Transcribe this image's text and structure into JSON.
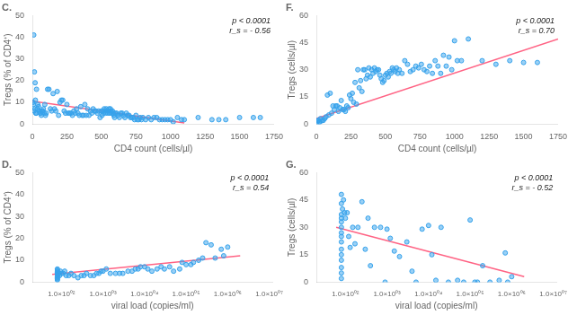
{
  "chart_data": [
    {
      "type": "scatter",
      "title": "C.",
      "x_label": "CD4 count (cells/µl)",
      "y_label": "Tregs (% of CD4⁺)",
      "annotation": "p < 0.0001\nr_s = - 0.56",
      "series": [
        {
          "type": "scatter",
          "x": [
            5,
            8,
            10,
            12,
            15,
            18,
            20,
            22,
            25,
            28,
            30,
            35,
            40,
            45,
            50,
            55,
            60,
            65,
            70,
            75,
            80,
            85,
            90,
            95,
            100,
            110,
            120,
            130,
            140,
            150,
            160,
            170,
            180,
            190,
            200,
            210,
            220,
            230,
            240,
            250,
            260,
            270,
            280,
            290,
            300,
            310,
            320,
            330,
            340,
            350,
            360,
            370,
            380,
            390,
            400,
            410,
            420,
            430,
            440,
            450,
            460,
            470,
            480,
            490,
            500,
            505,
            510,
            515,
            520,
            525,
            530,
            535,
            540,
            545,
            550,
            555,
            560,
            565,
            570,
            575,
            580,
            585,
            590,
            595,
            600,
            610,
            620,
            630,
            640,
            650,
            660,
            670,
            680,
            690,
            700,
            710,
            720,
            730,
            740,
            750,
            760,
            770,
            780,
            790,
            800,
            820,
            840,
            860,
            880,
            900,
            920,
            940,
            960,
            980,
            1000,
            1020,
            1050,
            1080,
            1100,
            1200,
            1300,
            1350,
            1400,
            1500,
            1600,
            1650
          ],
          "values": [
            10,
            9,
            41,
            6,
            24,
            7,
            19,
            11,
            5,
            5,
            16,
            7,
            9,
            8,
            6,
            5,
            5,
            4,
            6,
            6,
            7,
            5,
            9,
            4,
            5,
            16,
            16,
            7,
            6,
            14,
            7,
            6,
            15,
            4,
            10,
            11,
            11,
            6,
            5,
            9,
            5,
            5,
            5,
            4,
            6,
            5,
            7,
            5,
            4,
            8,
            4,
            4,
            9,
            4,
            7,
            4,
            6,
            5,
            7,
            6,
            6,
            5,
            6,
            3,
            6,
            4,
            6,
            5,
            7,
            6,
            5,
            7,
            6,
            5,
            6,
            7,
            5,
            7,
            6,
            5,
            6,
            5,
            4,
            3,
            5,
            5,
            4,
            3,
            5,
            5,
            4,
            3,
            5,
            4,
            4,
            3,
            3,
            3,
            2,
            4,
            2,
            2,
            3,
            2,
            3,
            2,
            3,
            2,
            3,
            3,
            2,
            2,
            2,
            2,
            2,
            1,
            3,
            2,
            2,
            3,
            2,
            2,
            2,
            3,
            3,
            3
          ]
        },
        {
          "type": "line",
          "x": [
            0,
            1100
          ],
          "values": [
            10.5,
            0.5
          ]
        }
      ],
      "xlim": [
        0,
        1750
      ],
      "xticks": [
        0,
        250,
        500,
        750,
        1000,
        1250,
        1500,
        1750
      ],
      "ylim": [
        0,
        50
      ],
      "yticks": [
        0,
        10,
        20,
        30,
        40,
        50
      ],
      "grid": false
    },
    {
      "type": "scatter",
      "title": "F.",
      "x_label": "CD4 count (cells/µl)",
      "y_label": "Tregs (cells/µl)",
      "annotation": "p < 0.0001\nr_s = 0.70",
      "series": [
        {
          "type": "scatter",
          "x": [
            5,
            10,
            15,
            20,
            25,
            30,
            40,
            50,
            60,
            70,
            80,
            90,
            100,
            110,
            120,
            130,
            140,
            150,
            160,
            170,
            180,
            190,
            200,
            210,
            220,
            230,
            240,
            250,
            260,
            270,
            280,
            290,
            300,
            310,
            320,
            330,
            340,
            350,
            360,
            370,
            380,
            390,
            400,
            410,
            420,
            430,
            440,
            450,
            460,
            470,
            480,
            490,
            500,
            510,
            520,
            530,
            540,
            550,
            560,
            570,
            580,
            590,
            600,
            620,
            640,
            660,
            680,
            700,
            720,
            740,
            760,
            780,
            800,
            820,
            840,
            860,
            880,
            900,
            920,
            940,
            960,
            980,
            1000,
            1020,
            1050,
            1100,
            1200,
            1300,
            1400,
            1500,
            1600
          ],
          "values": [
            1,
            2,
            2,
            1,
            1,
            3,
            2,
            2,
            3,
            4,
            16,
            5,
            17,
            6,
            10,
            8,
            10,
            10,
            7,
            9,
            13,
            8,
            8,
            7,
            10,
            9,
            16,
            14,
            17,
            12,
            23,
            11,
            30,
            20,
            24,
            18,
            30,
            30,
            25,
            27,
            31,
            26,
            30,
            28,
            31,
            29,
            30,
            30,
            27,
            25,
            23,
            24,
            27,
            28,
            26,
            29,
            28,
            31,
            30,
            29,
            31,
            28,
            30,
            28,
            35,
            33,
            29,
            30,
            32,
            31,
            33,
            30,
            29,
            32,
            28,
            35,
            32,
            28,
            38,
            32,
            37,
            30,
            46,
            35,
            35,
            47,
            35,
            33,
            35,
            34,
            34
          ]
        },
        {
          "type": "line",
          "x": [
            0,
            1750
          ],
          "values": [
            3,
            47
          ]
        }
      ],
      "xlim": [
        0,
        1750
      ],
      "xticks": [
        0,
        250,
        500,
        750,
        1000,
        1250,
        1500,
        1750
      ],
      "ylim": [
        0,
        60
      ],
      "yticks": [
        0,
        15,
        30,
        45,
        60
      ],
      "grid": false
    },
    {
      "type": "scatter",
      "title": "D.",
      "x_label": "viral load (copies/ml)",
      "y_label": "Tregs (% of CD4⁺)",
      "annotation": "p < 0.0001\nr_s = 0.54",
      "series": [
        {
          "type": "scatter",
          "x": [
            80,
            80,
            80,
            80,
            80,
            80,
            80,
            80,
            80,
            80,
            80,
            80,
            85,
            90,
            95,
            100,
            110,
            120,
            130,
            150,
            170,
            200,
            250,
            300,
            350,
            400,
            500,
            600,
            700,
            800,
            900,
            1000,
            1200,
            1500,
            2000,
            2500,
            3000,
            4000,
            5000,
            6000,
            7000,
            8000,
            10000,
            12000,
            15000,
            20000,
            25000,
            30000,
            40000,
            50000,
            70000,
            80000,
            100000,
            130000,
            150000,
            200000,
            250000,
            300000,
            400000,
            500000,
            700000,
            800000,
            1000000
          ],
          "values": [
            1,
            1.5,
            2,
            2.5,
            3,
            3.5,
            4,
            4.5,
            5,
            5.5,
            6,
            3,
            4,
            3,
            5,
            4,
            4,
            5,
            3,
            3,
            4,
            3,
            2,
            3,
            3,
            4,
            3,
            3,
            4,
            4,
            5,
            5,
            6,
            4,
            4,
            4,
            4,
            5,
            5,
            6,
            6,
            7,
            7,
            6,
            5,
            6,
            7,
            6,
            7,
            5,
            6,
            9,
            8,
            8,
            9,
            10,
            11,
            18,
            17,
            11,
            15,
            12,
            16
          ]
        },
        {
          "type": "line",
          "x": [
            60,
            2000000
          ],
          "values": [
            3.5,
            12
          ]
        }
      ],
      "log": "x",
      "xlim": [
        20,
        12000000
      ],
      "xticks": [
        {
          "value": 100,
          "label": "1.0×10⁰²"
        },
        {
          "value": 1000,
          "label": "1.0×10⁰³"
        },
        {
          "value": 10000,
          "label": "1.0×10⁰⁴"
        },
        {
          "value": 100000,
          "label": "1.0×10⁰⁵"
        },
        {
          "value": 1000000,
          "label": "1.0×10⁰⁶"
        },
        {
          "value": 10000000,
          "label": "1.0×10⁰⁷"
        }
      ],
      "ylim": [
        0,
        50
      ],
      "yticks": [
        0,
        10,
        20,
        30,
        40,
        50
      ],
      "grid": false
    },
    {
      "type": "scatter",
      "title": "G.",
      "x_label": "viral load (copies/ml)",
      "y_label": "Tregs (cells/µl)",
      "annotation": "p < 0.0001\nr_s = - 0.52",
      "series": [
        {
          "type": "scatter",
          "x": [
            80,
            80,
            80,
            80,
            80,
            80,
            80,
            80,
            80,
            80,
            80,
            80,
            80,
            80,
            80,
            85,
            90,
            95,
            100,
            110,
            120,
            130,
            150,
            170,
            200,
            250,
            300,
            350,
            400,
            500,
            700,
            900,
            1000,
            1200,
            1500,
            2000,
            3000,
            4000,
            5000,
            7000,
            10000,
            12000,
            15000,
            20000,
            30000,
            50000,
            70000,
            100000,
            130000,
            150000,
            200000,
            300000,
            500000,
            700000,
            800000,
            1000000
          ],
          "values": [
            35,
            37,
            33,
            30,
            27,
            25,
            22,
            18,
            15,
            12,
            8,
            5,
            2,
            43,
            48,
            40,
            45,
            38,
            35,
            38,
            25,
            19,
            30,
            21,
            30,
            44,
            18,
            35,
            9,
            30,
            30,
            0,
            29,
            24,
            17,
            14,
            22,
            6,
            0,
            29,
            31,
            15,
            1,
            30,
            0,
            1,
            0,
            34,
            0,
            0,
            9,
            0,
            1,
            16,
            0,
            3
          ]
        },
        {
          "type": "line",
          "x": [
            60,
            2000000
          ],
          "values": [
            30,
            3
          ]
        }
      ],
      "log": "x",
      "xlim": [
        20,
        12000000
      ],
      "xticks": [
        {
          "value": 100,
          "label": "1.0×10⁰²"
        },
        {
          "value": 1000,
          "label": "1.0×10⁰³"
        },
        {
          "value": 10000,
          "label": "1.0×10⁰⁴"
        },
        {
          "value": 100000,
          "label": "1.0×10⁰⁵"
        },
        {
          "value": 1000000,
          "label": "1.0×10⁰⁶"
        },
        {
          "value": 10000000,
          "label": "1.0×10⁰⁷"
        }
      ],
      "ylim": [
        0,
        60
      ],
      "yticks": [
        0,
        15,
        30,
        45,
        60
      ],
      "grid": false
    }
  ]
}
